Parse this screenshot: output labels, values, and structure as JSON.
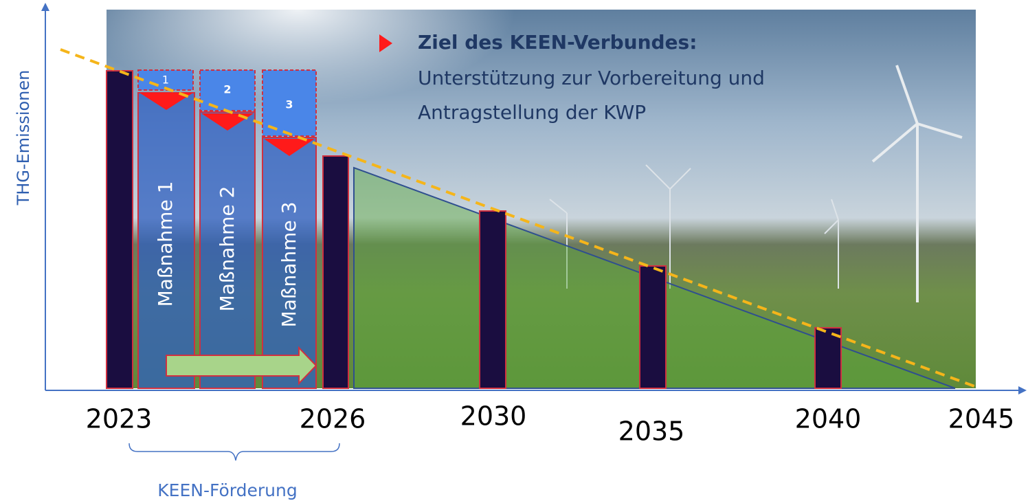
{
  "y_axis_label": "THG-Emissionen",
  "years": [
    "2023",
    "2026",
    "2030",
    "2035",
    "2040",
    "2045"
  ],
  "measures": [
    {
      "number": "1",
      "label": "Maßnahme 1"
    },
    {
      "number": "2",
      "label": "Maßnahme 2"
    },
    {
      "number": "3",
      "label": "Maßnahme 3"
    }
  ],
  "goal": {
    "title": "Ziel des KEEN-Verbundes:",
    "lines": [
      "Unterstützung zur Vorbereitung und",
      "Antragstellung der KWP"
    ]
  },
  "funding_label": "KEEN-Förderung"
}
